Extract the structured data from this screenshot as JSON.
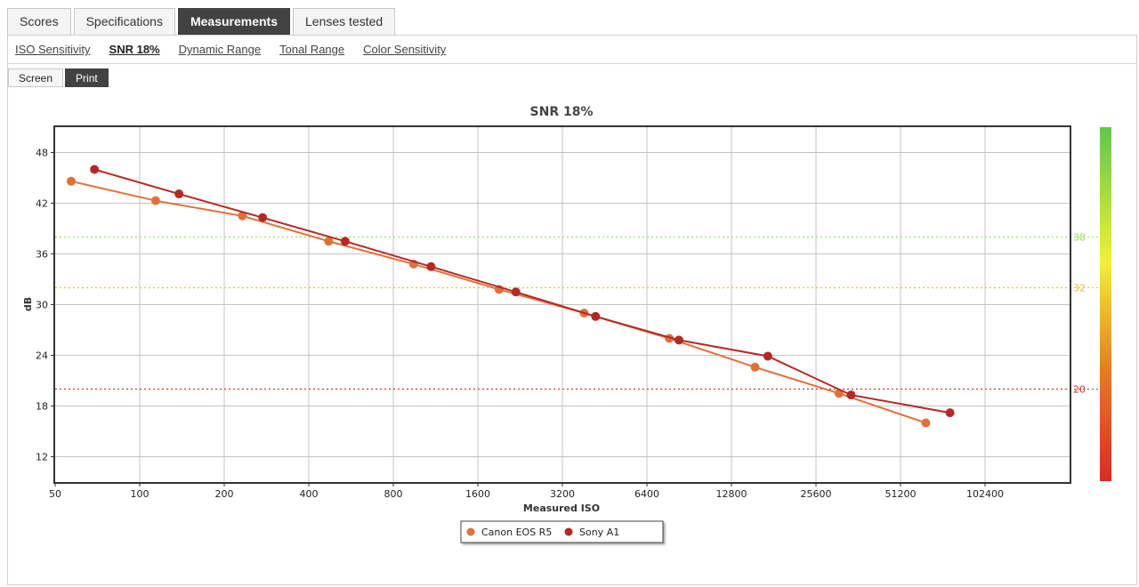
{
  "tabs": [
    {
      "label": "Scores",
      "active": false
    },
    {
      "label": "Specifications",
      "active": false
    },
    {
      "label": "Measurements",
      "active": true
    },
    {
      "label": "Lenses tested",
      "active": false
    }
  ],
  "subnav": [
    {
      "label": "ISO Sensitivity",
      "active": false
    },
    {
      "label": "SNR 18%",
      "active": true
    },
    {
      "label": "Dynamic Range",
      "active": false
    },
    {
      "label": "Tonal Range",
      "active": false
    },
    {
      "label": "Color Sensitivity",
      "active": false
    }
  ],
  "toggles": [
    {
      "label": "Screen",
      "active": false
    },
    {
      "label": "Print",
      "active": true
    }
  ],
  "chart_data": {
    "type": "line",
    "title": "SNR 18%",
    "xlabel": "Measured ISO",
    "ylabel": "dB",
    "x_scale": "log2",
    "xlim": [
      50,
      204800
    ],
    "ylim": [
      9,
      51
    ],
    "x_ticks": [
      50,
      100,
      200,
      400,
      800,
      1600,
      3200,
      6400,
      12800,
      25600,
      51200,
      102400
    ],
    "y_ticks": [
      12,
      18,
      24,
      30,
      36,
      42,
      48
    ],
    "grid": true,
    "legend_position": "bottom-center",
    "reference_lines": [
      {
        "value": 38,
        "label": "38",
        "color": "#9be05a"
      },
      {
        "value": 32,
        "label": "32",
        "color": "#e0c23a"
      },
      {
        "value": 20,
        "label": "20",
        "color": "#c0392b"
      }
    ],
    "quality_bar_colors": [
      "#5ec84a",
      "#f2f03a",
      "#e67e22",
      "#d92b26"
    ],
    "series": [
      {
        "name": "Canon EOS R5",
        "color": "#e0703a",
        "points": [
          [
            57,
            44.6
          ],
          [
            114,
            42.3
          ],
          [
            232,
            40.5
          ],
          [
            471,
            37.5
          ],
          [
            945,
            34.8
          ],
          [
            1905,
            31.8
          ],
          [
            3825,
            29.0
          ],
          [
            7690,
            26.0
          ],
          [
            15530,
            22.6
          ],
          [
            30900,
            19.5
          ],
          [
            63000,
            16.0
          ]
        ]
      },
      {
        "name": "Sony A1",
        "color": "#b22a25",
        "points": [
          [
            69,
            46.0
          ],
          [
            138,
            43.1
          ],
          [
            274,
            40.3
          ],
          [
            539,
            37.5
          ],
          [
            1090,
            34.5
          ],
          [
            2185,
            31.5
          ],
          [
            4200,
            28.6
          ],
          [
            8320,
            25.8
          ],
          [
            17250,
            23.9
          ],
          [
            34130,
            19.3
          ],
          [
            76800,
            17.2
          ]
        ]
      }
    ]
  }
}
